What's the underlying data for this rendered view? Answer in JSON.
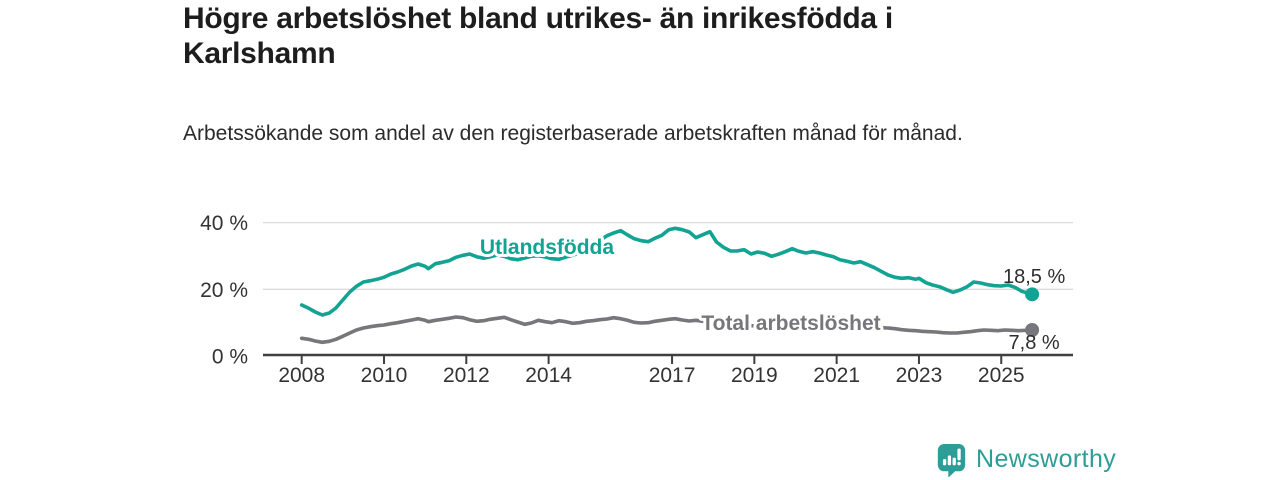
{
  "header": {
    "title": "Högre arbetslöshet bland utrikes- än inrikesfödda i Karlshamn",
    "subtitle": "Arbetssökande som andel av den registerbaserade arbetskraften månad för månad."
  },
  "chart_data": {
    "type": "line",
    "title": "Högre arbetslöshet bland utrikes- än inrikesfödda i Karlshamn",
    "xlabel": "",
    "ylabel": "Arbetssökande som andel av den registerbaserade arbetskraften (%)",
    "x_unit": "decimal year, monthly data",
    "xlim": [
      2007.05,
      2026.8
    ],
    "ylim": [
      0,
      43
    ],
    "grid": "horizontal",
    "legend_position": "inline-labels",
    "x_ticks": [
      2008,
      2010,
      2012,
      2014,
      2017,
      2019,
      2021,
      2023,
      2025
    ],
    "y_ticks": [
      {
        "value": 0,
        "label": "0 %"
      },
      {
        "value": 20,
        "label": "20 %"
      },
      {
        "value": 40,
        "label": "40 %"
      }
    ],
    "series": [
      {
        "name": "Utlandsfödda",
        "color": "#12a392",
        "end_value": 18.5,
        "end_label": "18,5 %",
        "points": [
          [
            2008.0,
            15.3
          ],
          [
            2008.17,
            14.3
          ],
          [
            2008.33,
            13.2
          ],
          [
            2008.5,
            12.3
          ],
          [
            2008.67,
            12.9
          ],
          [
            2008.83,
            14.4
          ],
          [
            2009.0,
            16.8
          ],
          [
            2009.17,
            19.2
          ],
          [
            2009.33,
            20.9
          ],
          [
            2009.5,
            22.2
          ],
          [
            2009.67,
            22.6
          ],
          [
            2009.83,
            23.0
          ],
          [
            2010.0,
            23.6
          ],
          [
            2010.17,
            24.6
          ],
          [
            2010.33,
            25.2
          ],
          [
            2010.5,
            26.0
          ],
          [
            2010.67,
            27.0
          ],
          [
            2010.83,
            27.6
          ],
          [
            2011.0,
            26.9
          ],
          [
            2011.08,
            26.2
          ],
          [
            2011.25,
            27.7
          ],
          [
            2011.42,
            28.1
          ],
          [
            2011.58,
            28.6
          ],
          [
            2011.75,
            29.6
          ],
          [
            2011.92,
            30.2
          ],
          [
            2012.08,
            30.6
          ],
          [
            2012.25,
            29.8
          ],
          [
            2012.42,
            29.3
          ],
          [
            2012.58,
            29.8
          ],
          [
            2012.75,
            30.3
          ],
          [
            2012.92,
            29.9
          ],
          [
            2013.08,
            29.2
          ],
          [
            2013.25,
            28.9
          ],
          [
            2013.42,
            29.4
          ],
          [
            2013.58,
            29.9
          ],
          [
            2013.75,
            30.1
          ],
          [
            2013.92,
            29.7
          ],
          [
            2014.08,
            29.2
          ],
          [
            2014.25,
            29.0
          ],
          [
            2014.42,
            29.7
          ],
          [
            2014.58,
            30.2
          ],
          [
            2014.75,
            31.0
          ],
          [
            2014.92,
            32.0
          ],
          [
            2015.08,
            33.2
          ],
          [
            2015.25,
            34.7
          ],
          [
            2015.42,
            36.1
          ],
          [
            2015.58,
            36.9
          ],
          [
            2015.75,
            37.6
          ],
          [
            2015.92,
            36.3
          ],
          [
            2016.08,
            35.2
          ],
          [
            2016.25,
            34.6
          ],
          [
            2016.42,
            34.3
          ],
          [
            2016.58,
            35.3
          ],
          [
            2016.75,
            36.2
          ],
          [
            2016.92,
            37.9
          ],
          [
            2017.08,
            38.3
          ],
          [
            2017.25,
            37.9
          ],
          [
            2017.42,
            37.2
          ],
          [
            2017.58,
            35.5
          ],
          [
            2017.75,
            36.4
          ],
          [
            2017.92,
            37.3
          ],
          [
            2018.08,
            34.2
          ],
          [
            2018.25,
            32.6
          ],
          [
            2018.42,
            31.5
          ],
          [
            2018.58,
            31.5
          ],
          [
            2018.75,
            31.9
          ],
          [
            2018.92,
            30.6
          ],
          [
            2019.08,
            31.2
          ],
          [
            2019.25,
            30.8
          ],
          [
            2019.42,
            29.9
          ],
          [
            2019.58,
            30.5
          ],
          [
            2019.75,
            31.3
          ],
          [
            2019.92,
            32.2
          ],
          [
            2020.08,
            31.4
          ],
          [
            2020.25,
            30.9
          ],
          [
            2020.42,
            31.3
          ],
          [
            2020.58,
            30.9
          ],
          [
            2020.75,
            30.3
          ],
          [
            2020.92,
            29.8
          ],
          [
            2021.08,
            28.9
          ],
          [
            2021.25,
            28.4
          ],
          [
            2021.42,
            27.9
          ],
          [
            2021.58,
            28.3
          ],
          [
            2021.75,
            27.4
          ],
          [
            2021.92,
            26.5
          ],
          [
            2022.08,
            25.4
          ],
          [
            2022.25,
            24.3
          ],
          [
            2022.42,
            23.6
          ],
          [
            2022.58,
            23.3
          ],
          [
            2022.75,
            23.5
          ],
          [
            2022.92,
            23.0
          ],
          [
            2023.0,
            23.3
          ],
          [
            2023.17,
            22.0
          ],
          [
            2023.33,
            21.3
          ],
          [
            2023.5,
            20.8
          ],
          [
            2023.67,
            19.9
          ],
          [
            2023.83,
            19.1
          ],
          [
            2024.0,
            19.8
          ],
          [
            2024.17,
            20.8
          ],
          [
            2024.33,
            22.2
          ],
          [
            2024.5,
            21.9
          ],
          [
            2024.67,
            21.4
          ],
          [
            2024.83,
            21.1
          ],
          [
            2025.0,
            21.0
          ],
          [
            2025.17,
            21.3
          ],
          [
            2025.33,
            20.6
          ],
          [
            2025.5,
            19.4
          ],
          [
            2025.75,
            18.5
          ]
        ]
      },
      {
        "name": "Total arbetslöshet",
        "color": "#76767b",
        "end_value": 7.8,
        "end_label": "7,8 %",
        "points": [
          [
            2008.0,
            5.3
          ],
          [
            2008.17,
            5.0
          ],
          [
            2008.33,
            4.5
          ],
          [
            2008.5,
            4.1
          ],
          [
            2008.67,
            4.4
          ],
          [
            2008.83,
            5.0
          ],
          [
            2009.0,
            5.9
          ],
          [
            2009.17,
            6.9
          ],
          [
            2009.33,
            7.8
          ],
          [
            2009.5,
            8.4
          ],
          [
            2009.67,
            8.8
          ],
          [
            2009.83,
            9.1
          ],
          [
            2010.0,
            9.3
          ],
          [
            2010.17,
            9.7
          ],
          [
            2010.33,
            10.0
          ],
          [
            2010.5,
            10.4
          ],
          [
            2010.67,
            10.8
          ],
          [
            2010.83,
            11.2
          ],
          [
            2011.0,
            10.7
          ],
          [
            2011.08,
            10.3
          ],
          [
            2011.25,
            10.7
          ],
          [
            2011.42,
            11.0
          ],
          [
            2011.58,
            11.3
          ],
          [
            2011.75,
            11.7
          ],
          [
            2011.92,
            11.5
          ],
          [
            2012.08,
            10.9
          ],
          [
            2012.25,
            10.4
          ],
          [
            2012.42,
            10.6
          ],
          [
            2012.58,
            11.0
          ],
          [
            2012.75,
            11.3
          ],
          [
            2012.92,
            11.6
          ],
          [
            2013.08,
            10.9
          ],
          [
            2013.25,
            10.2
          ],
          [
            2013.42,
            9.5
          ],
          [
            2013.58,
            9.9
          ],
          [
            2013.75,
            10.7
          ],
          [
            2013.92,
            10.3
          ],
          [
            2014.08,
            10.0
          ],
          [
            2014.25,
            10.6
          ],
          [
            2014.42,
            10.3
          ],
          [
            2014.58,
            9.8
          ],
          [
            2014.75,
            10.0
          ],
          [
            2014.92,
            10.4
          ],
          [
            2015.08,
            10.6
          ],
          [
            2015.25,
            10.9
          ],
          [
            2015.42,
            11.1
          ],
          [
            2015.58,
            11.5
          ],
          [
            2015.75,
            11.2
          ],
          [
            2015.92,
            10.7
          ],
          [
            2016.08,
            10.1
          ],
          [
            2016.25,
            9.9
          ],
          [
            2016.42,
            10.0
          ],
          [
            2016.58,
            10.4
          ],
          [
            2016.75,
            10.7
          ],
          [
            2016.92,
            11.0
          ],
          [
            2017.08,
            11.2
          ],
          [
            2017.25,
            10.8
          ],
          [
            2017.42,
            10.5
          ],
          [
            2017.58,
            10.7
          ],
          [
            2017.75,
            10.4
          ],
          [
            2017.92,
            10.1
          ],
          [
            2018.08,
            9.9
          ],
          [
            2018.25,
            9.7
          ],
          [
            2018.42,
            9.5
          ],
          [
            2018.58,
            9.4
          ],
          [
            2018.75,
            9.3
          ],
          [
            2018.92,
            9.1
          ],
          [
            2019.08,
            9.0
          ],
          [
            2019.25,
            9.1
          ],
          [
            2019.42,
            9.2
          ],
          [
            2019.58,
            9.3
          ],
          [
            2019.75,
            9.4
          ],
          [
            2019.92,
            9.6
          ],
          [
            2020.08,
            9.9
          ],
          [
            2020.25,
            10.2
          ],
          [
            2020.42,
            10.4
          ],
          [
            2020.58,
            10.2
          ],
          [
            2020.75,
            10.0
          ],
          [
            2020.92,
            9.8
          ],
          [
            2021.08,
            9.5
          ],
          [
            2021.25,
            9.3
          ],
          [
            2021.42,
            9.1
          ],
          [
            2021.58,
            8.9
          ],
          [
            2021.75,
            8.7
          ],
          [
            2021.92,
            8.6
          ],
          [
            2022.08,
            8.5
          ],
          [
            2022.25,
            8.4
          ],
          [
            2022.42,
            8.2
          ],
          [
            2022.58,
            7.9
          ],
          [
            2022.75,
            7.7
          ],
          [
            2022.92,
            7.6
          ],
          [
            2023.08,
            7.4
          ],
          [
            2023.25,
            7.3
          ],
          [
            2023.42,
            7.2
          ],
          [
            2023.58,
            7.0
          ],
          [
            2023.75,
            6.9
          ],
          [
            2023.92,
            6.9
          ],
          [
            2024.08,
            7.1
          ],
          [
            2024.25,
            7.3
          ],
          [
            2024.42,
            7.6
          ],
          [
            2024.58,
            7.8
          ],
          [
            2024.75,
            7.7
          ],
          [
            2024.92,
            7.6
          ],
          [
            2025.08,
            7.8
          ],
          [
            2025.25,
            7.7
          ],
          [
            2025.42,
            7.6
          ],
          [
            2025.75,
            7.8
          ]
        ]
      }
    ],
    "annotations": [
      "18,5 %",
      "7,8 %"
    ],
    "colors": {
      "grid": "#dcdcdc",
      "axis": "#3f3f3f",
      "tick_text": "#333333",
      "value_label_text": "#2d2d2d"
    }
  },
  "branding": {
    "name": "Newsworthy",
    "logo_color": "#2d9d97",
    "icon": "bar-chart-speech-bubble"
  }
}
